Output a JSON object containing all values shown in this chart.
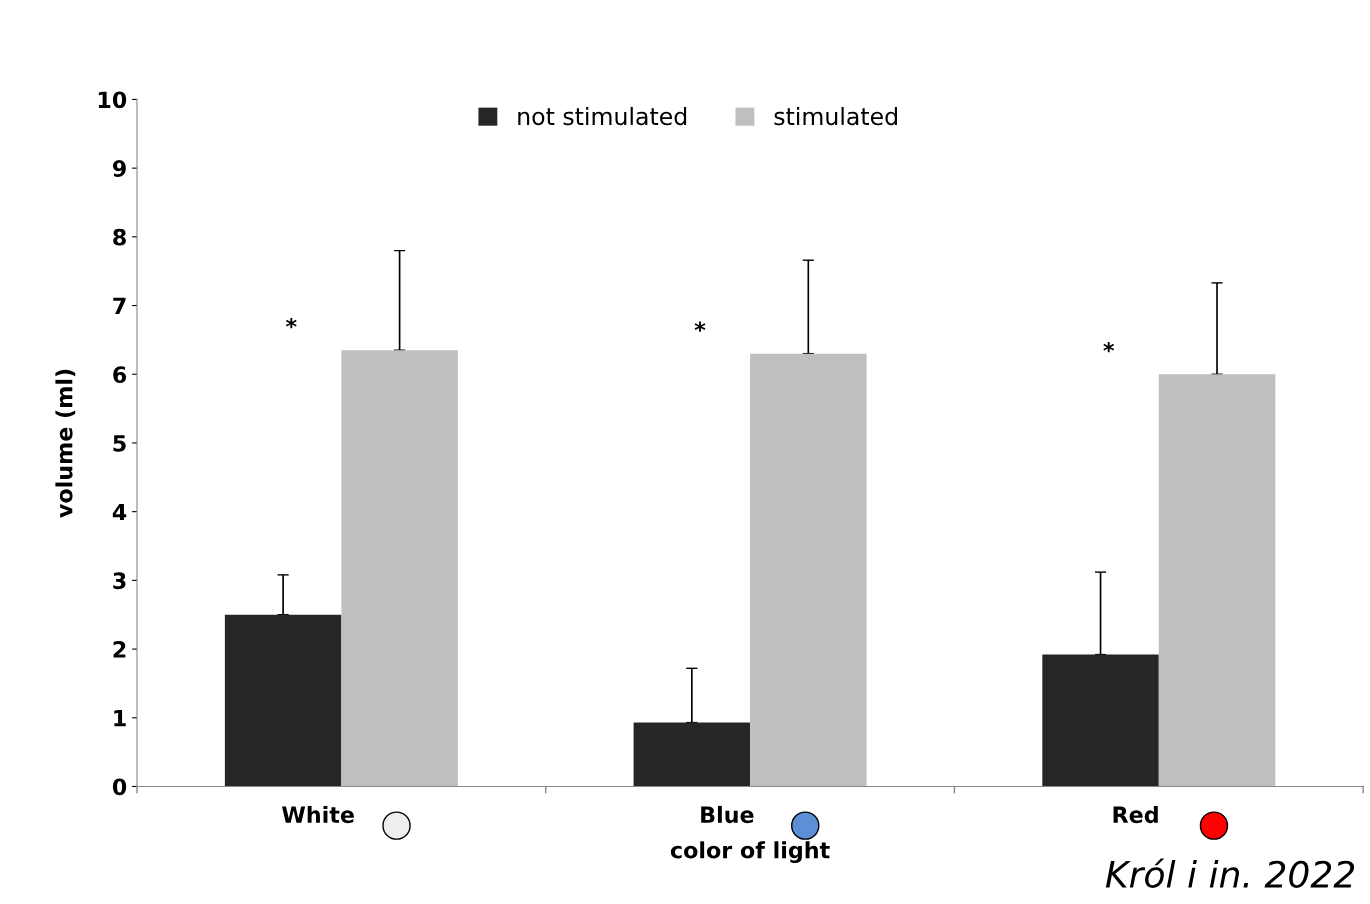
{
  "chart_data": {
    "type": "bar",
    "xlabel": "color of light",
    "ylabel": "volume (ml)",
    "categories": [
      "White",
      "Blue",
      "Red"
    ],
    "series": [
      {
        "name": "not stimulated",
        "color": "#262626",
        "values": [
          2.5,
          0.93,
          1.92
        ],
        "errors": [
          [
            2.5,
            3.08
          ],
          [
            0.93,
            1.72
          ],
          [
            1.92,
            3.12
          ]
        ]
      },
      {
        "name": "stimulated",
        "color": "#bfbfbf",
        "values": [
          6.35,
          6.3,
          6.0
        ],
        "errors": [
          [
            6.35,
            7.8
          ],
          [
            6.3,
            7.66
          ],
          [
            6.0,
            7.33
          ]
        ]
      }
    ],
    "ylim": [
      0,
      10
    ],
    "yticks": [
      0,
      1,
      2,
      3,
      4,
      5,
      6,
      7,
      8,
      9,
      10
    ],
    "grid": false,
    "legend": "top",
    "annotations": [
      "*",
      "*",
      "*",
      "Król i in. 2022"
    ]
  }
}
